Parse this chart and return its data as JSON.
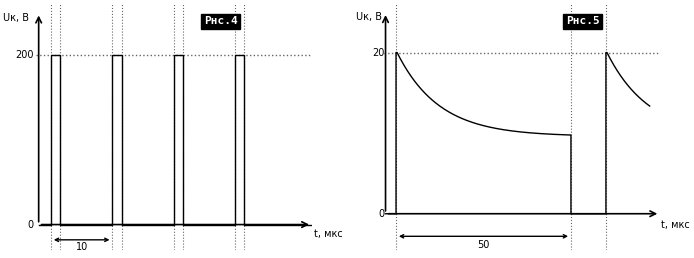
{
  "fig4": {
    "title": "Рнс.4",
    "ylabel": "Uк, В",
    "xlabel": "t, мкс",
    "y_max": 200,
    "period": 10,
    "duty": 0.15,
    "num_pulses": 4,
    "arrow_label": "10"
  },
  "fig5": {
    "title": "Рнс.5",
    "ylabel": "Uк, В",
    "xlabel": "t, мкс",
    "y_max": 20,
    "on_time": 50,
    "off_time": 10,
    "decay_tau": 12,
    "decay_floor": 0.48,
    "arrow_label": "50"
  },
  "bg_color": "#ffffff",
  "line_color": "#000000",
  "dot_color": "#666666",
  "title_bg": "#000000",
  "title_fg": "#ffffff"
}
